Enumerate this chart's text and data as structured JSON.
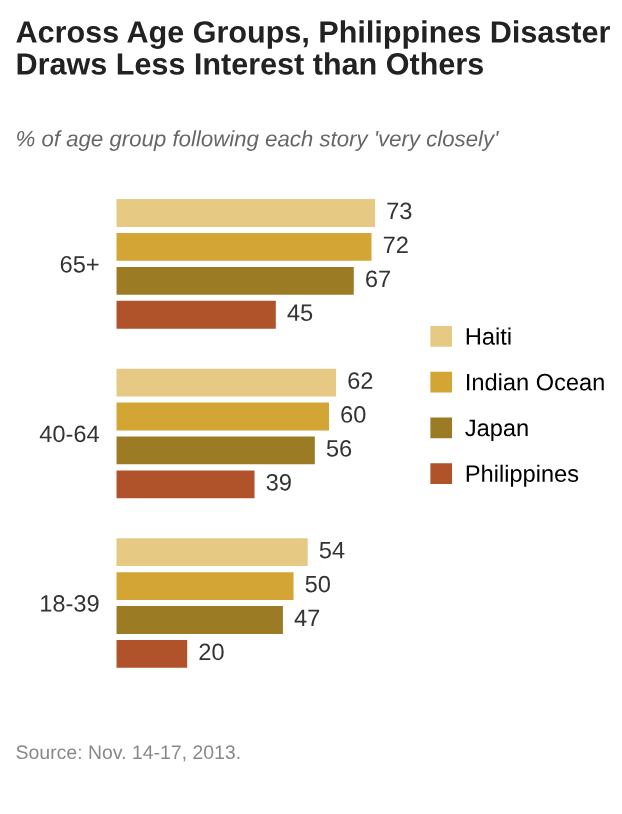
{
  "chart_data": {
    "type": "bar",
    "orientation": "horizontal",
    "title": "Across Age Groups, Philippines Disaster\nDraws Less Interest than Others",
    "subtitle": "% of age group following each story 'very closely'",
    "categories": [
      "65+",
      "40-64",
      "18-39"
    ],
    "series": [
      {
        "name": "Haiti",
        "color": "#e6c983",
        "values": [
          73,
          62,
          54
        ]
      },
      {
        "name": "Indian Ocean",
        "color": "#d3a534",
        "values": [
          72,
          60,
          50
        ]
      },
      {
        "name": "Japan",
        "color": "#9c7b25",
        "values": [
          67,
          56,
          47
        ]
      },
      {
        "name": "Philippines",
        "color": "#b0532a",
        "values": [
          45,
          39,
          20
        ]
      }
    ],
    "data_labels": true,
    "legend": "right",
    "grid": false,
    "annotations": [
      "Source: Nov. 14-17, 2013."
    ]
  }
}
